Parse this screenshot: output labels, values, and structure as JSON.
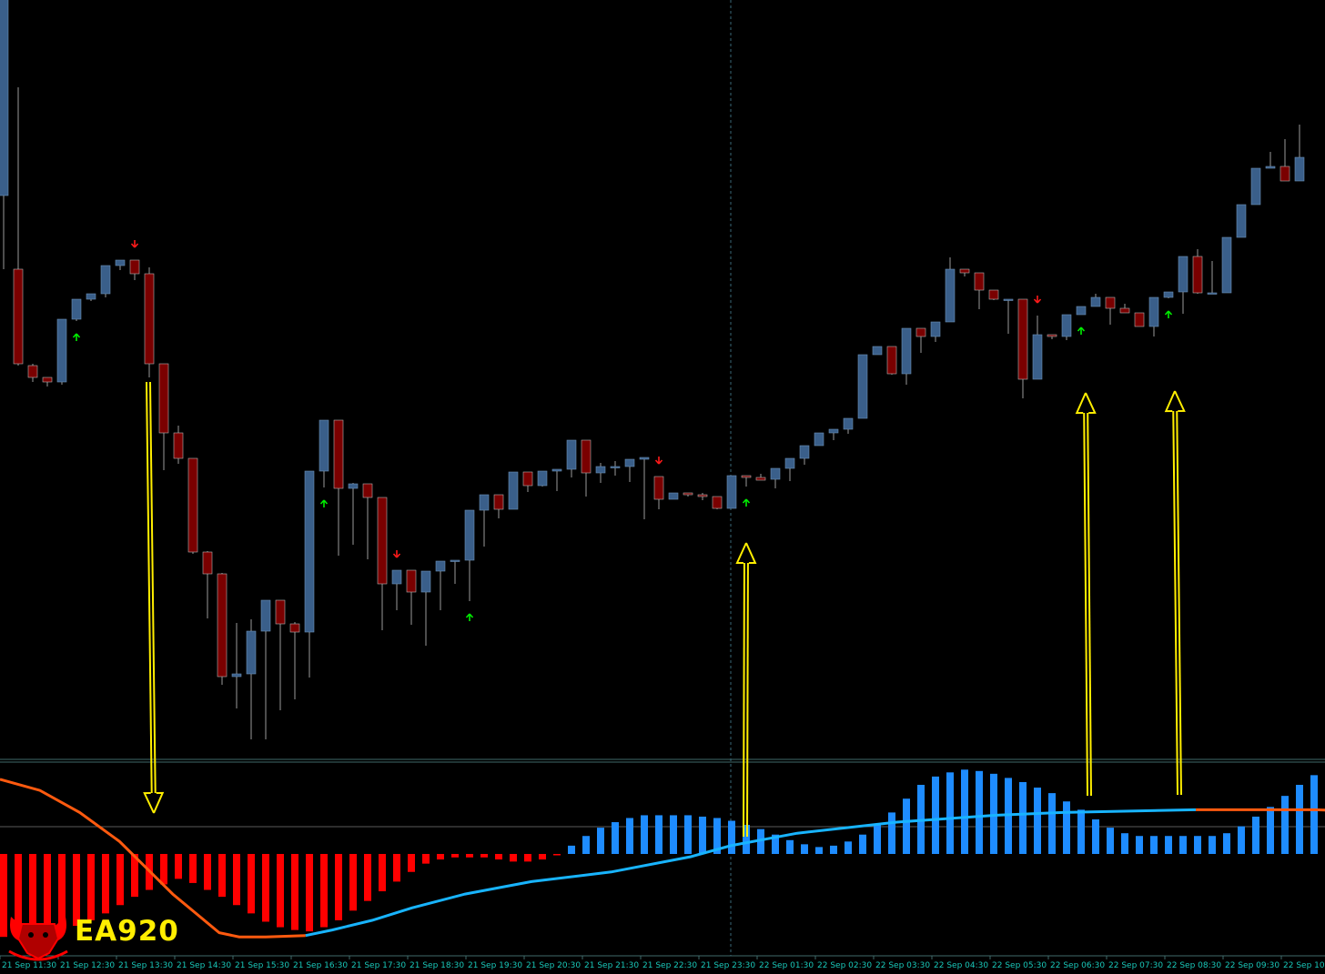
{
  "colors": {
    "background": "#000000",
    "bull_candle": "#3a5f8a",
    "bear_candle": "#7a0000",
    "wick": "#9a9a9a",
    "up_arrow": "#00ee00",
    "down_arrow": "#ff1a1a",
    "hist_negative": "#ff0000",
    "hist_positive": "#1e8cff",
    "signal_rising": "#18b4ff",
    "signal_falling": "#ff5a0f",
    "annotation": "#ffee00",
    "axis_text": "#19c7b9",
    "separator": "#3f6a6a",
    "crosshair": "#3a6a7a",
    "logo_red": "#ff0000",
    "logo_text": "#ffee00"
  },
  "logo": {
    "text": "EA920",
    "icon": "bull-head-icon"
  },
  "time_axis": [
    "21 Sep 11:30",
    "21 Sep 12:30",
    "21 Sep 13:30",
    "21 Sep 14:30",
    "21 Sep 15:30",
    "21 Sep 16:30",
    "21 Sep 17:30",
    "21 Sep 18:30",
    "21 Sep 19:30",
    "21 Sep 20:30",
    "21 Sep 21:30",
    "21 Sep 22:30",
    "21 Sep 23:30",
    "22 Sep 01:30",
    "22 Sep 02:30",
    "22 Sep 03:30",
    "22 Sep 04:30",
    "22 Sep 05:30",
    "22 Sep 06:30",
    "22 Sep 07:30",
    "22 Sep 08:30",
    "22 Sep 09:30",
    "22 Sep 10:30"
  ],
  "chart_data": [
    {
      "type": "candlestick",
      "panel": "price",
      "title": "",
      "xlabel": "",
      "ylabel": "",
      "price_range": [
        0,
        835
      ],
      "note_units": "prices in relative chart units (0 = bottom of price panel, 835 = top); no price scale is printed",
      "candles": [
        [
          620,
          839,
          539,
          839
        ],
        [
          539,
          739,
          433,
          435
        ],
        [
          433,
          435,
          415,
          420
        ],
        [
          420,
          419,
          410,
          415
        ],
        [
          415,
          484,
          412,
          484
        ],
        [
          484,
          506,
          482,
          506
        ],
        [
          506,
          512,
          504,
          512
        ],
        [
          512,
          543,
          508,
          543
        ],
        [
          543,
          549,
          538,
          549
        ],
        [
          549,
          534,
          527,
          534
        ],
        [
          534,
          541,
          420,
          435
        ],
        [
          435,
          434,
          318,
          359
        ],
        [
          359,
          367,
          325,
          331
        ],
        [
          331,
          331,
          226,
          228
        ],
        [
          228,
          229,
          155,
          204
        ],
        [
          204,
          205,
          82,
          91
        ],
        [
          91,
          150,
          56,
          94
        ],
        [
          94,
          154,
          22,
          141
        ],
        [
          141,
          175,
          22,
          175
        ],
        [
          175,
          154,
          54,
          149
        ],
        [
          149,
          151,
          66,
          140
        ],
        [
          140,
          317,
          90,
          317
        ],
        [
          317,
          373,
          299,
          373
        ],
        [
          373,
          297,
          224,
          298
        ],
        [
          298,
          304,
          236,
          303
        ],
        [
          303,
          288,
          220,
          288
        ],
        [
          288,
          193,
          142,
          193
        ],
        [
          193,
          207,
          164,
          208
        ],
        [
          208,
          183,
          148,
          184
        ],
        [
          184,
          207,
          125,
          207
        ],
        [
          207,
          218,
          164,
          218
        ],
        [
          218,
          218,
          193,
          219
        ],
        [
          219,
          274,
          174,
          274
        ],
        [
          274,
          291,
          234,
          291
        ],
        [
          291,
          291,
          265,
          275
        ],
        [
          275,
          316,
          298,
          316
        ],
        [
          316,
          301,
          294,
          301
        ],
        [
          301,
          316,
          300,
          317
        ],
        [
          317,
          319,
          295,
          319
        ],
        [
          319,
          351,
          310,
          351
        ],
        [
          351,
          315,
          289,
          315
        ],
        [
          315,
          326,
          304,
          322
        ],
        [
          322,
          328,
          312,
          322
        ],
        [
          322,
          330,
          305,
          330
        ],
        [
          330,
          311,
          264,
          332
        ],
        [
          311,
          285,
          275,
          286
        ],
        [
          286,
          290,
          290,
          293
        ],
        [
          293,
          291,
          289,
          291
        ],
        [
          291,
          293,
          285,
          289
        ],
        [
          289,
          275,
          286,
          276
        ],
        [
          276,
          311,
          293,
          312
        ],
        [
          312,
          310,
          300,
          310
        ],
        [
          310,
          308,
          314,
          307
        ],
        [
          308,
          319,
          298,
          320
        ],
        [
          320,
          331,
          306,
          331
        ],
        [
          331,
          345,
          324,
          345
        ],
        [
          345,
          359,
          347,
          359
        ],
        [
          359,
          363,
          351,
          363
        ],
        [
          363,
          375,
          358,
          375
        ],
        [
          375,
          444,
          387,
          445
        ],
        [
          445,
          454,
          447,
          454
        ],
        [
          454,
          450,
          423,
          424
        ],
        [
          424,
          472,
          412,
          474
        ],
        [
          474,
          465,
          447,
          465
        ],
        [
          465,
          478,
          459,
          481
        ],
        [
          481,
          539,
          552,
          539
        ],
        [
          539,
          535,
          531,
          535
        ],
        [
          535,
          517,
          495,
          516
        ],
        [
          516,
          505,
          505,
          506
        ],
        [
          506,
          468,
          468,
          506
        ],
        [
          506,
          418,
          397,
          418
        ],
        [
          418,
          467,
          488,
          467
        ],
        [
          467,
          462,
          465,
          465
        ],
        [
          465,
          489,
          461,
          489
        ],
        [
          489,
          498,
          493,
          498
        ],
        [
          498,
          512,
          498,
          508
        ],
        [
          508,
          500,
          478,
          496
        ],
        [
          496,
          491,
          501,
          491
        ],
        [
          491,
          476,
          491,
          476
        ],
        [
          476,
          508,
          465,
          508
        ],
        [
          508,
          510,
          507,
          514
        ],
        [
          514,
          553,
          490,
          553
        ],
        [
          553,
          512,
          561,
          513
        ],
        [
          513,
          545,
          548,
          513
        ],
        [
          513,
          573,
          574,
          574
        ],
        [
          574,
          610,
          593,
          610
        ],
        [
          610,
          644,
          636,
          650
        ],
        [
          650,
          661,
          668,
          652
        ],
        [
          652,
          663,
          682,
          636
        ],
        [
          636,
          662,
          698,
          662
        ]
      ],
      "up_arrows_at_candle": [
        5,
        22,
        32,
        51,
        74,
        80
      ],
      "down_arrows_at_candle": [
        9,
        27,
        45,
        71
      ]
    },
    {
      "type": "bar",
      "panel": "oscillator",
      "title": "",
      "xlabel": "",
      "ylabel": "",
      "value_range": [
        -1.4,
        1.4
      ],
      "note_units": "relative oscillator units; zero line is the histogram base",
      "histogram": [
        -1.2,
        -1.18,
        -1.16,
        -1.12,
        -1.08,
        -1.04,
        -0.96,
        -0.86,
        -0.74,
        -0.62,
        -0.52,
        -0.44,
        -0.36,
        -0.42,
        -0.52,
        -0.62,
        -0.74,
        -0.86,
        -0.98,
        -1.06,
        -1.1,
        -1.12,
        -1.06,
        -0.96,
        -0.82,
        -0.68,
        -0.54,
        -0.4,
        -0.26,
        -0.14,
        -0.08,
        -0.05,
        -0.05,
        -0.05,
        -0.08,
        -0.11,
        -0.11,
        -0.08,
        -0.02,
        0.12,
        0.26,
        0.38,
        0.46,
        0.52,
        0.56,
        0.56,
        0.56,
        0.56,
        0.54,
        0.52,
        0.48,
        0.42,
        0.36,
        0.28,
        0.2,
        0.14,
        0.1,
        0.12,
        0.18,
        0.28,
        0.42,
        0.6,
        0.8,
        1.0,
        1.12,
        1.18,
        1.22,
        1.2,
        1.16,
        1.1,
        1.04,
        0.96,
        0.88,
        0.76,
        0.64,
        0.5,
        0.38,
        0.3,
        0.26,
        0.26,
        0.26,
        0.26,
        0.26,
        0.26,
        0.3,
        0.4,
        0.54,
        0.68,
        0.84,
        1.0,
        1.14,
        1.2,
        1.24
      ],
      "signal_line": [
        [
          0,
          1.08
        ],
        [
          6,
          0.92
        ],
        [
          12,
          0.6
        ],
        [
          18,
          0.18
        ],
        [
          22,
          -0.2
        ],
        [
          26,
          -0.58
        ],
        [
          30,
          -0.9
        ],
        [
          33,
          -1.14
        ],
        [
          36,
          -1.2
        ],
        [
          40,
          -1.2
        ],
        [
          46,
          -1.18
        ],
        [
          50,
          -1.1
        ],
        [
          56,
          -0.96
        ],
        [
          62,
          -0.78
        ],
        [
          70,
          -0.58
        ],
        [
          80,
          -0.4
        ],
        [
          92,
          -0.26
        ],
        [
          104,
          -0.04
        ],
        [
          110,
          0.12
        ],
        [
          120,
          0.3
        ],
        [
          135,
          0.46
        ],
        [
          150,
          0.56
        ],
        [
          160,
          0.6
        ],
        [
          170,
          0.62
        ],
        [
          180,
          0.64
        ],
        [
          190,
          0.64
        ],
        [
          198,
          0.64
        ],
        [
          205,
          0.62
        ]
      ],
      "signal_turn_falling_at": 36,
      "signal_turn_rising_at": 188
    }
  ]
}
